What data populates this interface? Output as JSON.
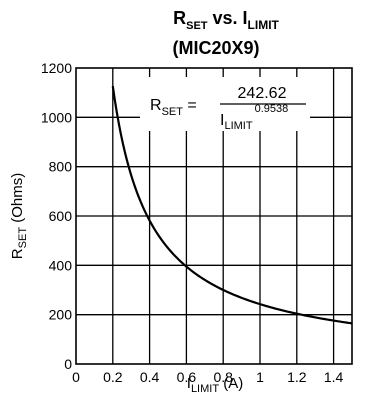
{
  "chart_data": {
    "type": "line",
    "title": {
      "line1_main": "R",
      "line1_sub": "SET",
      "line1_mid": " vs. I",
      "line1_sub2": "LIMIT",
      "line2": "(MIC20X9)"
    },
    "xlabel": {
      "main": "I",
      "sub": "LIMIT",
      "tail": " (A)"
    },
    "ylabel": {
      "main": "R",
      "sub": "SET",
      "tail": " (Ohms)"
    },
    "xlim": [
      0,
      1.5
    ],
    "ylim": [
      0,
      1200
    ],
    "x_ticks": [
      0,
      0.2,
      0.4,
      0.6,
      0.8,
      1.0,
      1.2,
      1.4
    ],
    "x_tick_labels": [
      "0",
      "0.2",
      "0.4",
      "0.6",
      "0.8",
      "1",
      "1.2",
      "1.4"
    ],
    "y_ticks": [
      0,
      200,
      400,
      600,
      800,
      1000,
      1200
    ],
    "y_tick_labels": [
      "0",
      "200",
      "400",
      "600",
      "800",
      "1000",
      "1200"
    ],
    "grid": true,
    "equation": {
      "lhs_main": "R",
      "lhs_sub": "SET",
      "equals": " = ",
      "numerator": "242.62",
      "den_main": "I",
      "den_sub": "LIMIT",
      "den_exp": "0.9538"
    },
    "series": [
      {
        "formula_coefficient": 242.62,
        "formula_exponent": 0.9538,
        "x_start": 0.2,
        "x_end": 1.5,
        "x": [
          0.2,
          0.25,
          0.3,
          0.4,
          0.5,
          0.6,
          0.8,
          1.0,
          1.2,
          1.4,
          1.5
        ],
        "y": [
          1129,
          909,
          762,
          579,
          469,
          395,
          300,
          243,
          204,
          176,
          164
        ]
      }
    ],
    "colors": {
      "line": "#000000",
      "grid": "#000000",
      "background": "#ffffff"
    }
  }
}
